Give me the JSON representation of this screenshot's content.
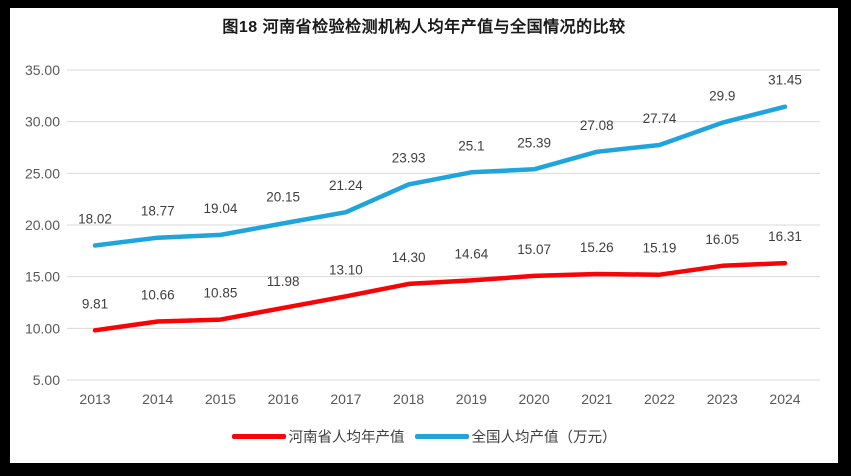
{
  "chart_data": {
    "type": "line",
    "title": "图18  河南省检验检测机构人均年产值与全国情况的比较",
    "categories": [
      "2013",
      "2014",
      "2015",
      "2016",
      "2017",
      "2018",
      "2019",
      "2020",
      "2021",
      "2022",
      "2023",
      "2024"
    ],
    "series": [
      {
        "name": "河南省人均年产值",
        "color": "#F80306",
        "values": [
          9.81,
          10.66,
          10.85,
          11.98,
          13.1,
          14.3,
          14.64,
          15.07,
          15.26,
          15.19,
          16.05,
          16.31
        ],
        "labels": [
          "9.81",
          "10.66",
          "10.85",
          "11.98",
          "13.10",
          "14.30",
          "14.64",
          "15.07",
          "15.26",
          "15.19",
          "16.05",
          "16.31"
        ]
      },
      {
        "name": "全国人均产值（万元）",
        "color": "#1FA5DC",
        "values": [
          18.02,
          18.77,
          19.04,
          20.15,
          21.24,
          23.93,
          25.1,
          25.39,
          27.08,
          27.74,
          29.9,
          31.45
        ],
        "labels": [
          "18.02",
          "18.77",
          "19.04",
          "20.15",
          "21.24",
          "23.93",
          "25.1",
          "25.39",
          "27.08",
          "27.74",
          "29.9",
          "31.45"
        ]
      }
    ],
    "ylim": [
      5,
      35
    ],
    "ytick_step": 5,
    "yticks": [
      "35.00",
      "30.00",
      "25.00",
      "20.00",
      "15.00",
      "10.00",
      "5.00"
    ],
    "xlabel": "",
    "ylabel": "",
    "grid": true,
    "legend_position": "bottom",
    "colors": {
      "frame_border": "#000000",
      "background": "#FFFFFF",
      "gridline": "#D9D9D9",
      "axis_text": "#595959",
      "data_label_text": "#3F3F3F"
    }
  }
}
